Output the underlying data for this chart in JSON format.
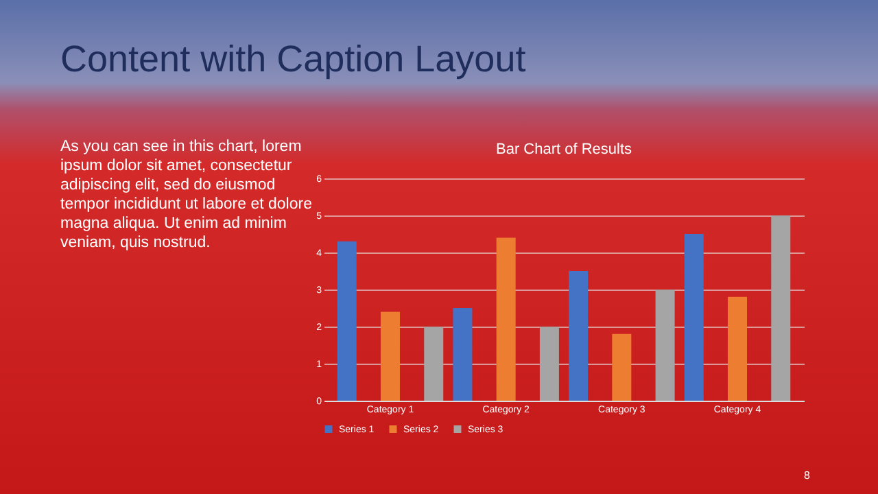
{
  "chart_data": {
    "type": "bar",
    "title": "Bar Chart of Results",
    "annotations": [
      "Content with Caption Layout",
      "As you can see in this chart, lorem ipsum dolor sit amet, consectetur adipiscing elit, sed do eiusmod tempor incididunt ut labore et dolore magna aliqua. Ut enim ad minim veniam, quis nostrud.",
      "8"
    ],
    "categories": [
      "Category 1",
      "Category 2",
      "Category 3",
      "Category 4"
    ],
    "series": [
      {
        "name": "Series 1",
        "color": "#4472c4",
        "values": [
          4.3,
          2.5,
          3.5,
          4.5
        ]
      },
      {
        "name": "Series 2",
        "color": "#ed7d31",
        "values": [
          2.4,
          4.4,
          1.8,
          2.8
        ]
      },
      {
        "name": "Series 3",
        "color": "#a5a5a5",
        "values": [
          2,
          2,
          3,
          5
        ]
      }
    ],
    "ylim": [
      0,
      6
    ],
    "yticks": [
      0,
      1,
      2,
      3,
      4,
      5,
      6
    ],
    "grid": "y",
    "legend": "bottom"
  }
}
